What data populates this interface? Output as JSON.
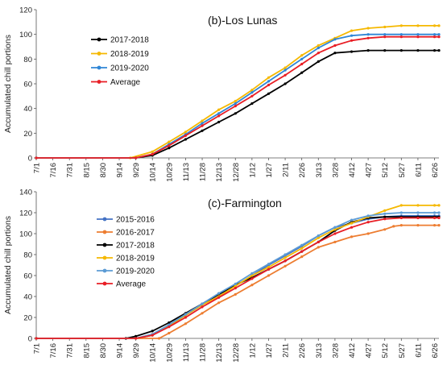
{
  "chart_data": [
    {
      "type": "line",
      "title": "(b)-Los Lunas",
      "ylabel": "Accumulated chill portions",
      "xlabel": "",
      "ylim": [
        0,
        120
      ],
      "yticks": [
        0,
        20,
        40,
        60,
        80,
        100,
        120
      ],
      "grid": false,
      "legend_position": "top-left",
      "x_tick_labels": [
        "7/1",
        "7/16",
        "7/31",
        "8/15",
        "8/30",
        "9/14",
        "9/29",
        "10/14",
        "10/29",
        "11/13",
        "11/28",
        "12/13",
        "12/28",
        "1/12",
        "1/27",
        "2/11",
        "2/26",
        "3/13",
        "3/28",
        "4/12",
        "4/27",
        "5/12",
        "5/27",
        "6/11",
        "6/26"
      ],
      "series": [
        {
          "name": "2017-2018",
          "color": "#000000",
          "x": [
            "7/1",
            "9/29",
            "10/14",
            "10/29",
            "11/13",
            "11/28",
            "12/13",
            "12/28",
            "1/12",
            "1/27",
            "2/11",
            "2/26",
            "3/13",
            "3/28",
            "4/12",
            "4/27",
            "5/12",
            "5/27",
            "6/11",
            "6/26",
            "6/30"
          ],
          "y": [
            0,
            0,
            2,
            8,
            15,
            22,
            29,
            36,
            44,
            52,
            60,
            69,
            78,
            85,
            86,
            87,
            87,
            87,
            87,
            87,
            87
          ]
        },
        {
          "name": "2018-2019",
          "color": "#F5B800",
          "x": [
            "7/1",
            "9/24",
            "10/14",
            "10/29",
            "11/13",
            "11/28",
            "12/13",
            "12/28",
            "1/12",
            "1/27",
            "2/11",
            "2/26",
            "3/13",
            "3/28",
            "4/12",
            "4/27",
            "5/12",
            "5/27",
            "6/11",
            "6/26",
            "6/30"
          ],
          "y": [
            0,
            0,
            5,
            13,
            21,
            30,
            39,
            46,
            55,
            65,
            73,
            83,
            91,
            97,
            103,
            105,
            106,
            107,
            107,
            107,
            107
          ]
        },
        {
          "name": "2019-2020",
          "color": "#2F86D6",
          "x": [
            "7/1",
            "9/29",
            "10/14",
            "10/29",
            "11/13",
            "11/28",
            "12/13",
            "12/28",
            "1/12",
            "1/27",
            "2/11",
            "2/26",
            "3/13",
            "3/28",
            "4/12",
            "4/27",
            "5/12",
            "5/27",
            "6/11",
            "6/26",
            "6/30"
          ],
          "y": [
            0,
            0,
            3,
            11,
            19,
            28,
            36,
            44,
            53,
            62,
            71,
            80,
            89,
            96,
            99,
            100,
            100,
            100,
            100,
            100,
            100
          ]
        },
        {
          "name": "Average",
          "color": "#E81E25",
          "x": [
            "7/1",
            "9/29",
            "10/14",
            "10/29",
            "11/13",
            "11/28",
            "12/13",
            "12/28",
            "1/12",
            "1/27",
            "2/11",
            "2/26",
            "3/13",
            "3/28",
            "4/12",
            "4/27",
            "5/12",
            "5/27",
            "6/11",
            "6/26",
            "6/30"
          ],
          "y": [
            0,
            0,
            3,
            10,
            18,
            26,
            34,
            42,
            50,
            59,
            67,
            76,
            85,
            91,
            95,
            97,
            98,
            98,
            98,
            98,
            98
          ]
        }
      ]
    },
    {
      "type": "line",
      "title": "(c)-Farmington",
      "ylabel": "Accumulated chill portions",
      "xlabel": "",
      "ylim": [
        0,
        140
      ],
      "yticks": [
        0,
        20,
        40,
        60,
        80,
        100,
        120,
        140
      ],
      "grid": false,
      "legend_position": "top-left",
      "x_tick_labels": [
        "7/1",
        "7/16",
        "7/31",
        "8/15",
        "8/30",
        "9/14",
        "9/29",
        "10/14",
        "10/29",
        "11/13",
        "11/28",
        "12/13",
        "12/28",
        "1/12",
        "1/27",
        "2/11",
        "2/26",
        "3/13",
        "3/28",
        "4/12",
        "4/27",
        "5/12",
        "5/27",
        "6/11",
        "6/26"
      ],
      "series": [
        {
          "name": "2015-2016",
          "color": "#4472C4",
          "x": [
            "7/1",
            "9/29",
            "10/14",
            "10/29",
            "11/13",
            "11/28",
            "12/13",
            "12/28",
            "1/12",
            "1/27",
            "2/11",
            "2/26",
            "3/13",
            "3/28",
            "4/12",
            "4/27",
            "5/12",
            "5/27",
            "6/11",
            "6/26",
            "6/30"
          ],
          "y": [
            0,
            0,
            3,
            12,
            22,
            32,
            42,
            50,
            60,
            70,
            79,
            88,
            98,
            106,
            110,
            114,
            116,
            117,
            117,
            117,
            117
          ]
        },
        {
          "name": "2016-2017",
          "color": "#ED7D31",
          "x": [
            "7/1",
            "10/20",
            "10/29",
            "11/13",
            "11/28",
            "12/13",
            "12/28",
            "1/12",
            "1/27",
            "2/11",
            "2/26",
            "3/13",
            "3/28",
            "4/12",
            "4/27",
            "5/12",
            "5/20",
            "5/27",
            "6/11",
            "6/26",
            "6/30"
          ],
          "y": [
            0,
            0,
            5,
            14,
            24,
            34,
            42,
            51,
            60,
            69,
            78,
            87,
            92,
            97,
            100,
            104,
            107,
            108,
            108,
            108,
            108
          ]
        },
        {
          "name": "2017-2018",
          "color": "#000000",
          "x": [
            "7/1",
            "9/20",
            "9/29",
            "10/14",
            "10/29",
            "11/13",
            "11/28",
            "12/13",
            "12/28",
            "1/12",
            "1/27",
            "2/11",
            "2/26",
            "3/13",
            "3/28",
            "4/12",
            "4/27",
            "5/12",
            "5/27",
            "6/11",
            "6/26",
            "6/30"
          ],
          "y": [
            0,
            0,
            2,
            7,
            15,
            24,
            33,
            42,
            51,
            58,
            66,
            74,
            83,
            92,
            103,
            111,
            115,
            116,
            116,
            116,
            116,
            116
          ]
        },
        {
          "name": "2018-2019",
          "color": "#F5B800",
          "x": [
            "7/1",
            "9/29",
            "10/14",
            "10/29",
            "11/13",
            "11/28",
            "12/13",
            "12/28",
            "1/12",
            "1/27",
            "2/11",
            "2/26",
            "3/13",
            "3/28",
            "4/12",
            "4/27",
            "5/12",
            "5/27",
            "6/11",
            "6/26",
            "6/30"
          ],
          "y": [
            0,
            0,
            3,
            12,
            22,
            32,
            40,
            50,
            60,
            68,
            77,
            86,
            96,
            104,
            110,
            116,
            122,
            127,
            127,
            127,
            127
          ]
        },
        {
          "name": "2019-2020",
          "color": "#5B9BD5",
          "x": [
            "7/1",
            "9/29",
            "10/14",
            "10/29",
            "11/13",
            "11/28",
            "12/13",
            "12/28",
            "1/12",
            "1/27",
            "2/11",
            "2/26",
            "3/13",
            "3/28",
            "4/12",
            "4/27",
            "5/12",
            "5/27",
            "6/11",
            "6/26",
            "6/30"
          ],
          "y": [
            0,
            0,
            4,
            13,
            23,
            33,
            43,
            52,
            62,
            71,
            80,
            89,
            98,
            106,
            113,
            117,
            119,
            120,
            120,
            120,
            120
          ]
        },
        {
          "name": "Average",
          "color": "#E81E25",
          "x": [
            "7/1",
            "9/29",
            "10/14",
            "10/29",
            "11/13",
            "11/28",
            "12/13",
            "12/28",
            "1/12",
            "1/27",
            "2/11",
            "2/26",
            "3/13",
            "3/28",
            "4/12",
            "4/27",
            "5/12",
            "5/27",
            "6/11",
            "6/26",
            "6/30"
          ],
          "y": [
            0,
            0,
            3,
            11,
            20,
            30,
            39,
            48,
            57,
            66,
            74,
            83,
            92,
            100,
            106,
            111,
            114,
            115,
            115,
            115,
            115
          ]
        }
      ]
    }
  ]
}
